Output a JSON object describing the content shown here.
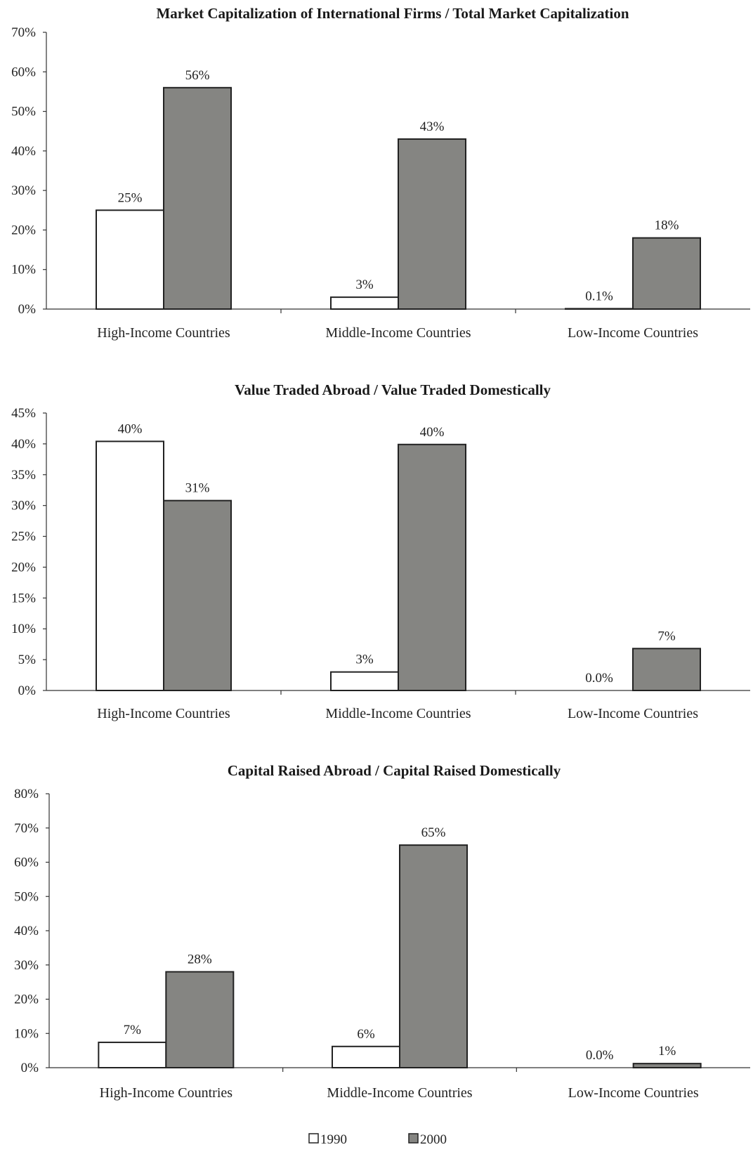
{
  "series_colors": {
    "1990": "#ffffff",
    "2000": "#858582"
  },
  "legend": [
    {
      "name": "1990",
      "color": "#ffffff"
    },
    {
      "name": "2000",
      "color": "#858582"
    }
  ],
  "chart_data": [
    {
      "type": "bar",
      "title": "Market Capitalization of International Firms / Total Market Capitalization",
      "categories": [
        "High-Income Countries",
        "Middle-Income Countries",
        "Low-Income Countries"
      ],
      "series": [
        {
          "name": "1990",
          "values": [
            25,
            3,
            0.1
          ],
          "labels": [
            "25%",
            "3%",
            "0.1%"
          ]
        },
        {
          "name": "2000",
          "values": [
            56,
            43,
            18
          ],
          "labels": [
            "56%",
            "43%",
            "18%"
          ]
        }
      ],
      "ylim": [
        0,
        70
      ],
      "ytick_step": 10,
      "ytick_labels": [
        "0%",
        "10%",
        "20%",
        "30%",
        "40%",
        "50%",
        "60%",
        "70%"
      ],
      "grid": false
    },
    {
      "type": "bar",
      "title": "Value Traded Abroad / Value Traded Domestically",
      "categories": [
        "High-Income Countries",
        "Middle-Income Countries",
        "Low-Income Countries"
      ],
      "series": [
        {
          "name": "1990",
          "values": [
            40.4,
            3,
            0
          ],
          "labels": [
            "40%",
            "3%",
            "0.0%"
          ]
        },
        {
          "name": "2000",
          "values": [
            30.8,
            39.9,
            6.8
          ],
          "labels": [
            "31%",
            "40%",
            "7%"
          ]
        }
      ],
      "ylim": [
        0,
        45
      ],
      "ytick_step": 5,
      "ytick_labels": [
        "0%",
        "5%",
        "10%",
        "15%",
        "20%",
        "25%",
        "30%",
        "35%",
        "40%",
        "45%"
      ],
      "grid": false
    },
    {
      "type": "bar",
      "title": "Capital Raised Abroad / Capital Raised Domestically",
      "categories": [
        "High-Income Countries",
        "Middle-Income Countries",
        "Low-Income Countries"
      ],
      "series": [
        {
          "name": "1990",
          "values": [
            7.4,
            6.2,
            0
          ],
          "labels": [
            "7%",
            "6%",
            "0.0%"
          ]
        },
        {
          "name": "2000",
          "values": [
            28,
            65,
            1.2
          ],
          "labels": [
            "28%",
            "65%",
            "1%"
          ]
        }
      ],
      "ylim": [
        0,
        80
      ],
      "ytick_step": 10,
      "ytick_labels": [
        "0%",
        "10%",
        "20%",
        "30%",
        "40%",
        "50%",
        "60%",
        "70%",
        "80%"
      ],
      "grid": false
    }
  ]
}
